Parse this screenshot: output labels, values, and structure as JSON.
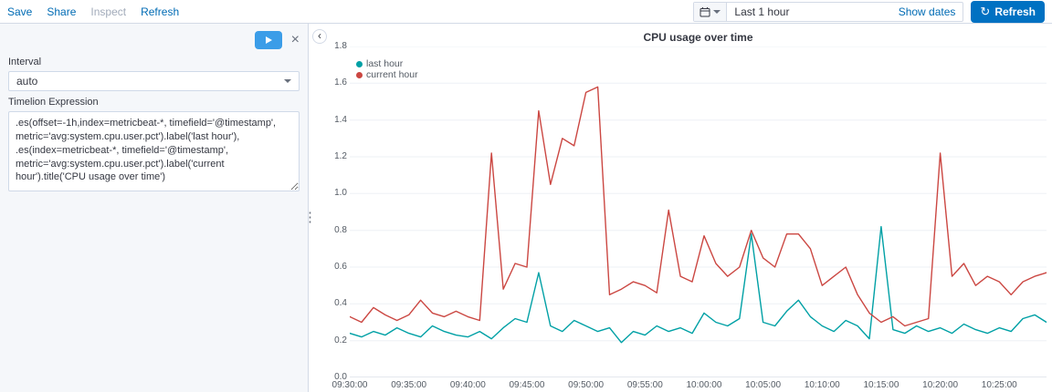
{
  "toolbar": {
    "save": "Save",
    "share": "Share",
    "inspect": "Inspect",
    "refresh": "Refresh"
  },
  "datepicker": {
    "value": "Last 1 hour",
    "show_dates_label": "Show dates",
    "refresh_button_label": "Refresh",
    "refresh_icon": "↻"
  },
  "editor": {
    "interval_label": "Interval",
    "interval_value": "auto",
    "expression_label": "Timelion Expression",
    "expression_value": ".es(offset=-1h,index=metricbeat-*, timefield='@timestamp',\nmetric='avg:system.cpu.user.pct').label('last hour'),\n.es(index=metricbeat-*, timefield='@timestamp',\nmetric='avg:system.cpu.user.pct').label('current\nhour').title('CPU usage over time')"
  },
  "colors": {
    "link_blue": "#006BB4",
    "primary_button": "#0071c2",
    "play_button": "#3b9de8",
    "series_teal": "#00A0A5",
    "series_red": "#CB4742"
  },
  "chart_data": {
    "type": "line",
    "title": "CPU usage over time",
    "x_start": "09:30:00",
    "x_interval_seconds": 60,
    "xticks": [
      "09:30:00",
      "09:35:00",
      "09:40:00",
      "09:45:00",
      "09:50:00",
      "09:55:00",
      "10:00:00",
      "10:05:00",
      "10:10:00",
      "10:15:00",
      "10:20:00",
      "10:25:00"
    ],
    "yticks": [
      0.0,
      0.2,
      0.4,
      0.6,
      0.8,
      1.0,
      1.2,
      1.4,
      1.6,
      1.8
    ],
    "ylim": [
      0,
      1.8
    ],
    "grid": "horizontal",
    "legend_position": "top-left",
    "series": [
      {
        "name": "last hour",
        "color": "#00A0A5",
        "values": [
          0.24,
          0.22,
          0.25,
          0.23,
          0.27,
          0.24,
          0.22,
          0.28,
          0.25,
          0.23,
          0.22,
          0.25,
          0.21,
          0.27,
          0.32,
          0.3,
          0.57,
          0.28,
          0.25,
          0.31,
          0.28,
          0.25,
          0.27,
          0.19,
          0.25,
          0.23,
          0.28,
          0.25,
          0.27,
          0.24,
          0.35,
          0.3,
          0.28,
          0.32,
          0.78,
          0.3,
          0.28,
          0.36,
          0.42,
          0.33,
          0.28,
          0.25,
          0.31,
          0.28,
          0.21,
          0.82,
          0.26,
          0.24,
          0.28,
          0.25,
          0.27,
          0.24,
          0.29,
          0.26,
          0.24,
          0.27,
          0.25,
          0.32,
          0.34,
          0.3
        ]
      },
      {
        "name": "current hour",
        "color": "#CB4742",
        "values": [
          0.33,
          0.3,
          0.38,
          0.34,
          0.31,
          0.34,
          0.42,
          0.35,
          0.33,
          0.36,
          0.33,
          0.31,
          1.22,
          0.48,
          0.62,
          0.6,
          1.45,
          1.05,
          1.3,
          1.26,
          1.55,
          1.58,
          0.45,
          0.48,
          0.52,
          0.5,
          0.46,
          0.91,
          0.55,
          0.52,
          0.77,
          0.62,
          0.55,
          0.6,
          0.8,
          0.65,
          0.6,
          0.78,
          0.78,
          0.7,
          0.5,
          0.55,
          0.6,
          0.45,
          0.35,
          0.3,
          0.33,
          0.28,
          0.3,
          0.32,
          1.22,
          0.55,
          0.62,
          0.5,
          0.55,
          0.52,
          0.45,
          0.52,
          0.55,
          0.57
        ]
      }
    ]
  }
}
